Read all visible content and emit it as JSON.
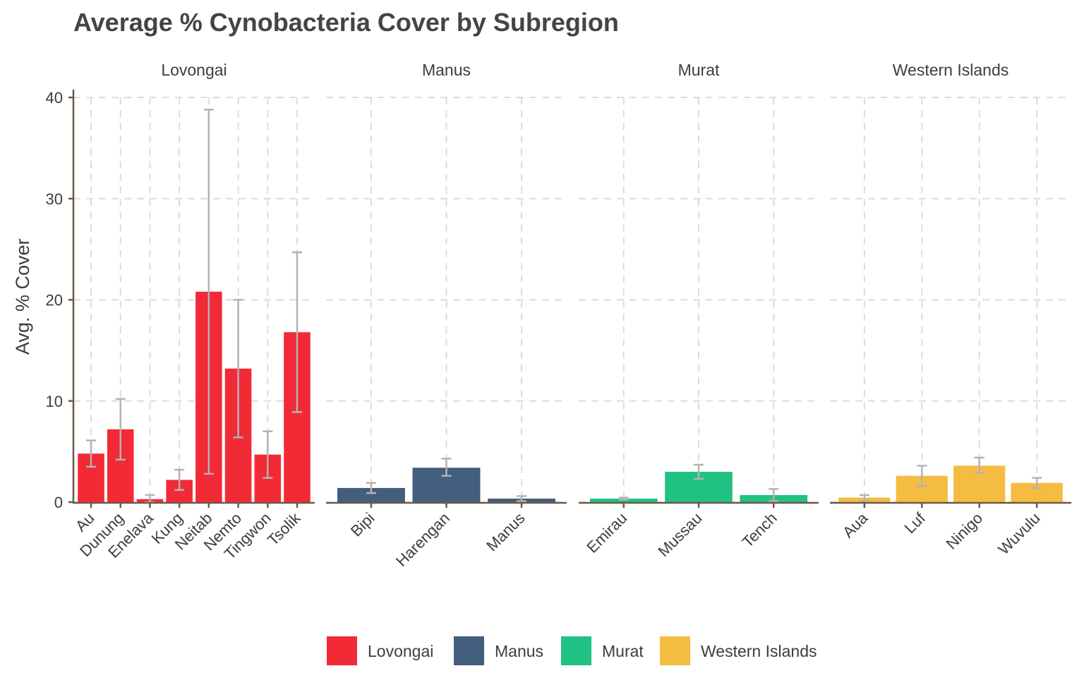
{
  "chart_data": {
    "type": "bar",
    "title": "Average % Cynobacteria Cover by Subregion",
    "ylabel": "Avg. % Cover",
    "xlabel": "",
    "ylim": [
      0,
      40
    ],
    "yticks": [
      0,
      10,
      20,
      30,
      40
    ],
    "grid": true,
    "legend_position": "bottom",
    "facets": [
      {
        "name": "Lovongai",
        "color": "#f22a36",
        "categories": [
          "Au",
          "Dunung",
          "Enelava",
          "Kung",
          "Neitab",
          "Nemto",
          "Tingwon",
          "Tsolik"
        ],
        "values": [
          4.8,
          7.2,
          0.3,
          2.2,
          20.8,
          13.2,
          4.7,
          16.8
        ],
        "error_low": [
          3.5,
          4.2,
          0.0,
          1.2,
          2.8,
          6.4,
          2.4,
          8.9
        ],
        "error_high": [
          6.1,
          10.2,
          0.7,
          3.2,
          38.8,
          20.0,
          7.0,
          24.7
        ]
      },
      {
        "name": "Manus",
        "color": "#445e7d",
        "categories": [
          "Bipi",
          "Harengan",
          "Manus"
        ],
        "values": [
          1.4,
          3.4,
          0.35
        ],
        "error_low": [
          0.9,
          2.6,
          0.1
        ],
        "error_high": [
          1.9,
          4.3,
          0.6
        ]
      },
      {
        "name": "Murat",
        "color": "#21c183",
        "categories": [
          "Emirau",
          "Mussau",
          "Tench"
        ],
        "values": [
          0.35,
          3.0,
          0.7
        ],
        "error_low": [
          0.25,
          2.3,
          0.1
        ],
        "error_high": [
          0.45,
          3.7,
          1.3
        ]
      },
      {
        "name": "Western Islands",
        "color": "#f5bc42",
        "categories": [
          "Aua",
          "Luf",
          "Ninigo",
          "Wuvulu"
        ],
        "values": [
          0.45,
          2.6,
          3.6,
          1.9
        ],
        "error_low": [
          0.1,
          1.6,
          2.9,
          1.4
        ],
        "error_high": [
          0.7,
          3.6,
          4.4,
          2.4
        ]
      }
    ]
  }
}
